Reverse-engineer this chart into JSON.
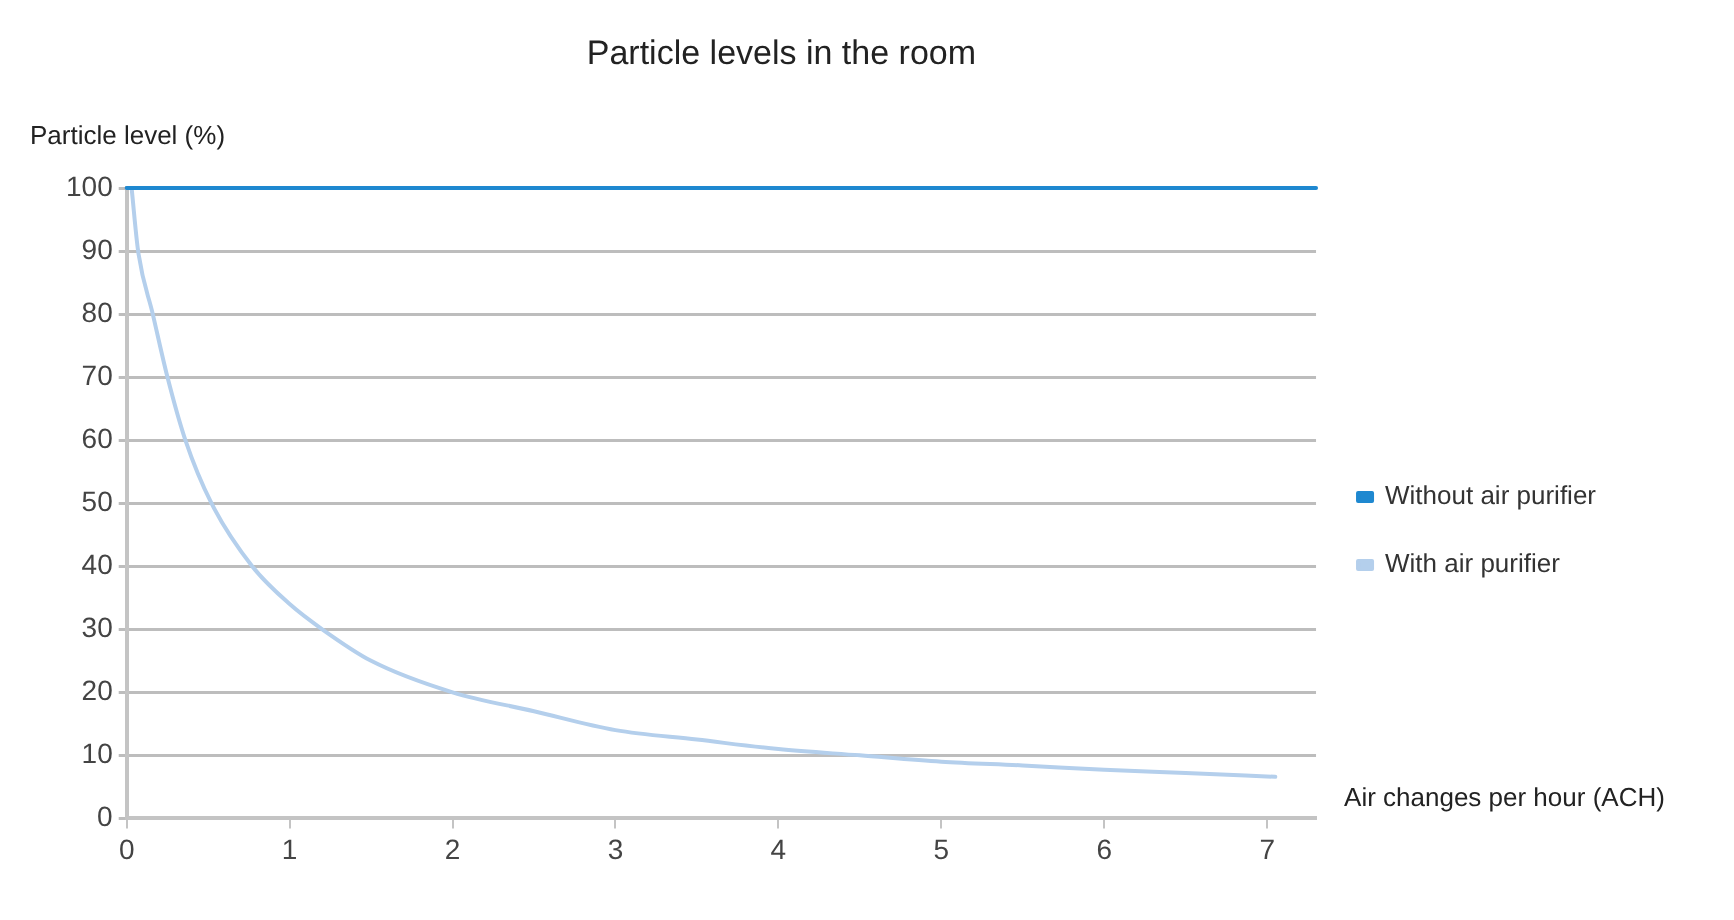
{
  "chart_data": {
    "type": "line",
    "title": "Particle levels in the room",
    "xlabel": "Air changes per hour (ACH)",
    "ylabel": "Particle level (%)",
    "xlim": [
      0,
      7.3
    ],
    "xticks": [
      0,
      1,
      2,
      3,
      4,
      5,
      6,
      7
    ],
    "ylim": [
      0,
      100
    ],
    "yticks": [
      0,
      10,
      20,
      30,
      40,
      50,
      60,
      70,
      80,
      90,
      100
    ],
    "series": [
      {
        "name": "Without air purifier",
        "color": "#1e88d0",
        "x": [
          0,
          7.3
        ],
        "values": [
          100,
          100
        ]
      },
      {
        "name": "With air purifier",
        "color": "#b4cfec",
        "x": [
          0.03,
          0.07,
          0.16,
          0.25,
          0.36,
          0.52,
          0.77,
          1,
          1.2,
          1.5,
          2,
          2.5,
          3,
          3.5,
          4,
          4.5,
          5,
          5.5,
          6,
          6.5,
          7.05
        ],
        "values": [
          100,
          90,
          80,
          70,
          60,
          50,
          40,
          34,
          30,
          25,
          20,
          17,
          14,
          12.5,
          11,
          10,
          9,
          8.4,
          7.7,
          7.2,
          6.6
        ]
      }
    ],
    "grid": "y",
    "legend": "right",
    "marker": "none",
    "line_style": "solid"
  }
}
